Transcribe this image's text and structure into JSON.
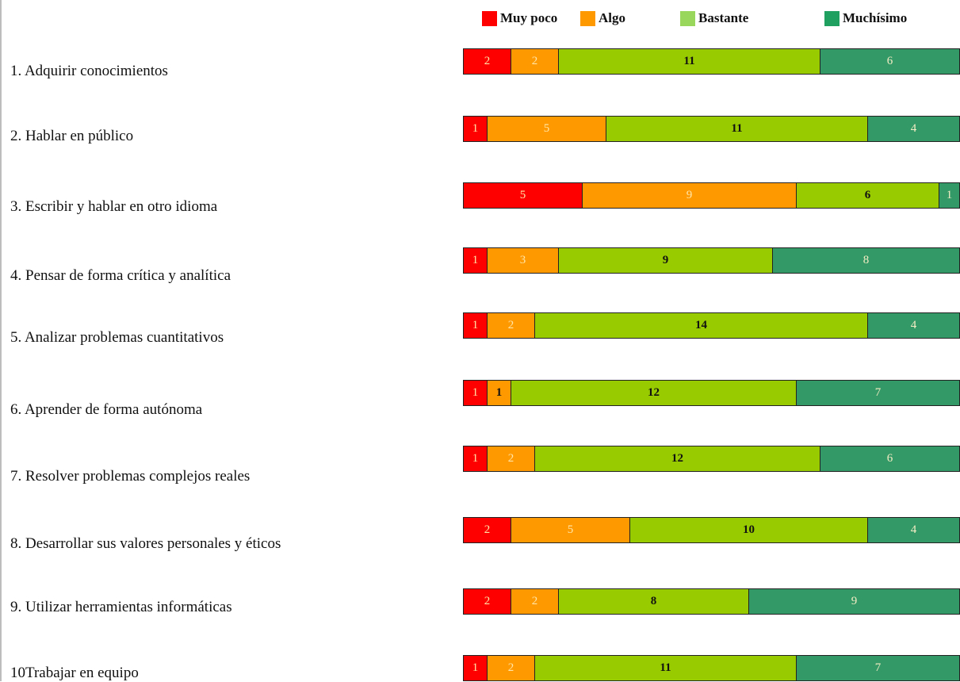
{
  "chart_data": {
    "type": "bar",
    "orientation": "horizontal",
    "stacked": true,
    "title": "",
    "xlabel": "",
    "ylabel": "",
    "legend": {
      "placement": "top"
    },
    "grid": false,
    "categories": [
      "1. Adquirir conocimientos",
      "2. Hablar en público",
      "3. Escribir y hablar en otro idioma",
      "4. Pensar de forma crítica y analítica",
      "5. Analizar problemas cuantitativos",
      "6. Aprender de forma autónoma",
      "7. Resolver problemas complejos reales",
      "8. Desarrollar sus valores personales y éticos",
      "9. Utilizar herramientas informáticas",
      "10Trabajar en equipo"
    ],
    "series": [
      {
        "name": "Muy poco",
        "color": "#ff0000",
        "values": [
          2,
          1,
          5,
          1,
          1,
          1,
          1,
          2,
          2,
          1
        ]
      },
      {
        "name": "Algo",
        "color": "#ff9900",
        "values": [
          2,
          5,
          9,
          3,
          2,
          1,
          2,
          5,
          2,
          2
        ]
      },
      {
        "name": "Bastante",
        "color": "#99cc00",
        "values": [
          11,
          11,
          6,
          9,
          14,
          12,
          12,
          10,
          8,
          11
        ]
      },
      {
        "name": "Muchísimo",
        "color": "#339966",
        "values": [
          6,
          4,
          1,
          8,
          4,
          7,
          6,
          4,
          9,
          7
        ]
      }
    ]
  }
}
